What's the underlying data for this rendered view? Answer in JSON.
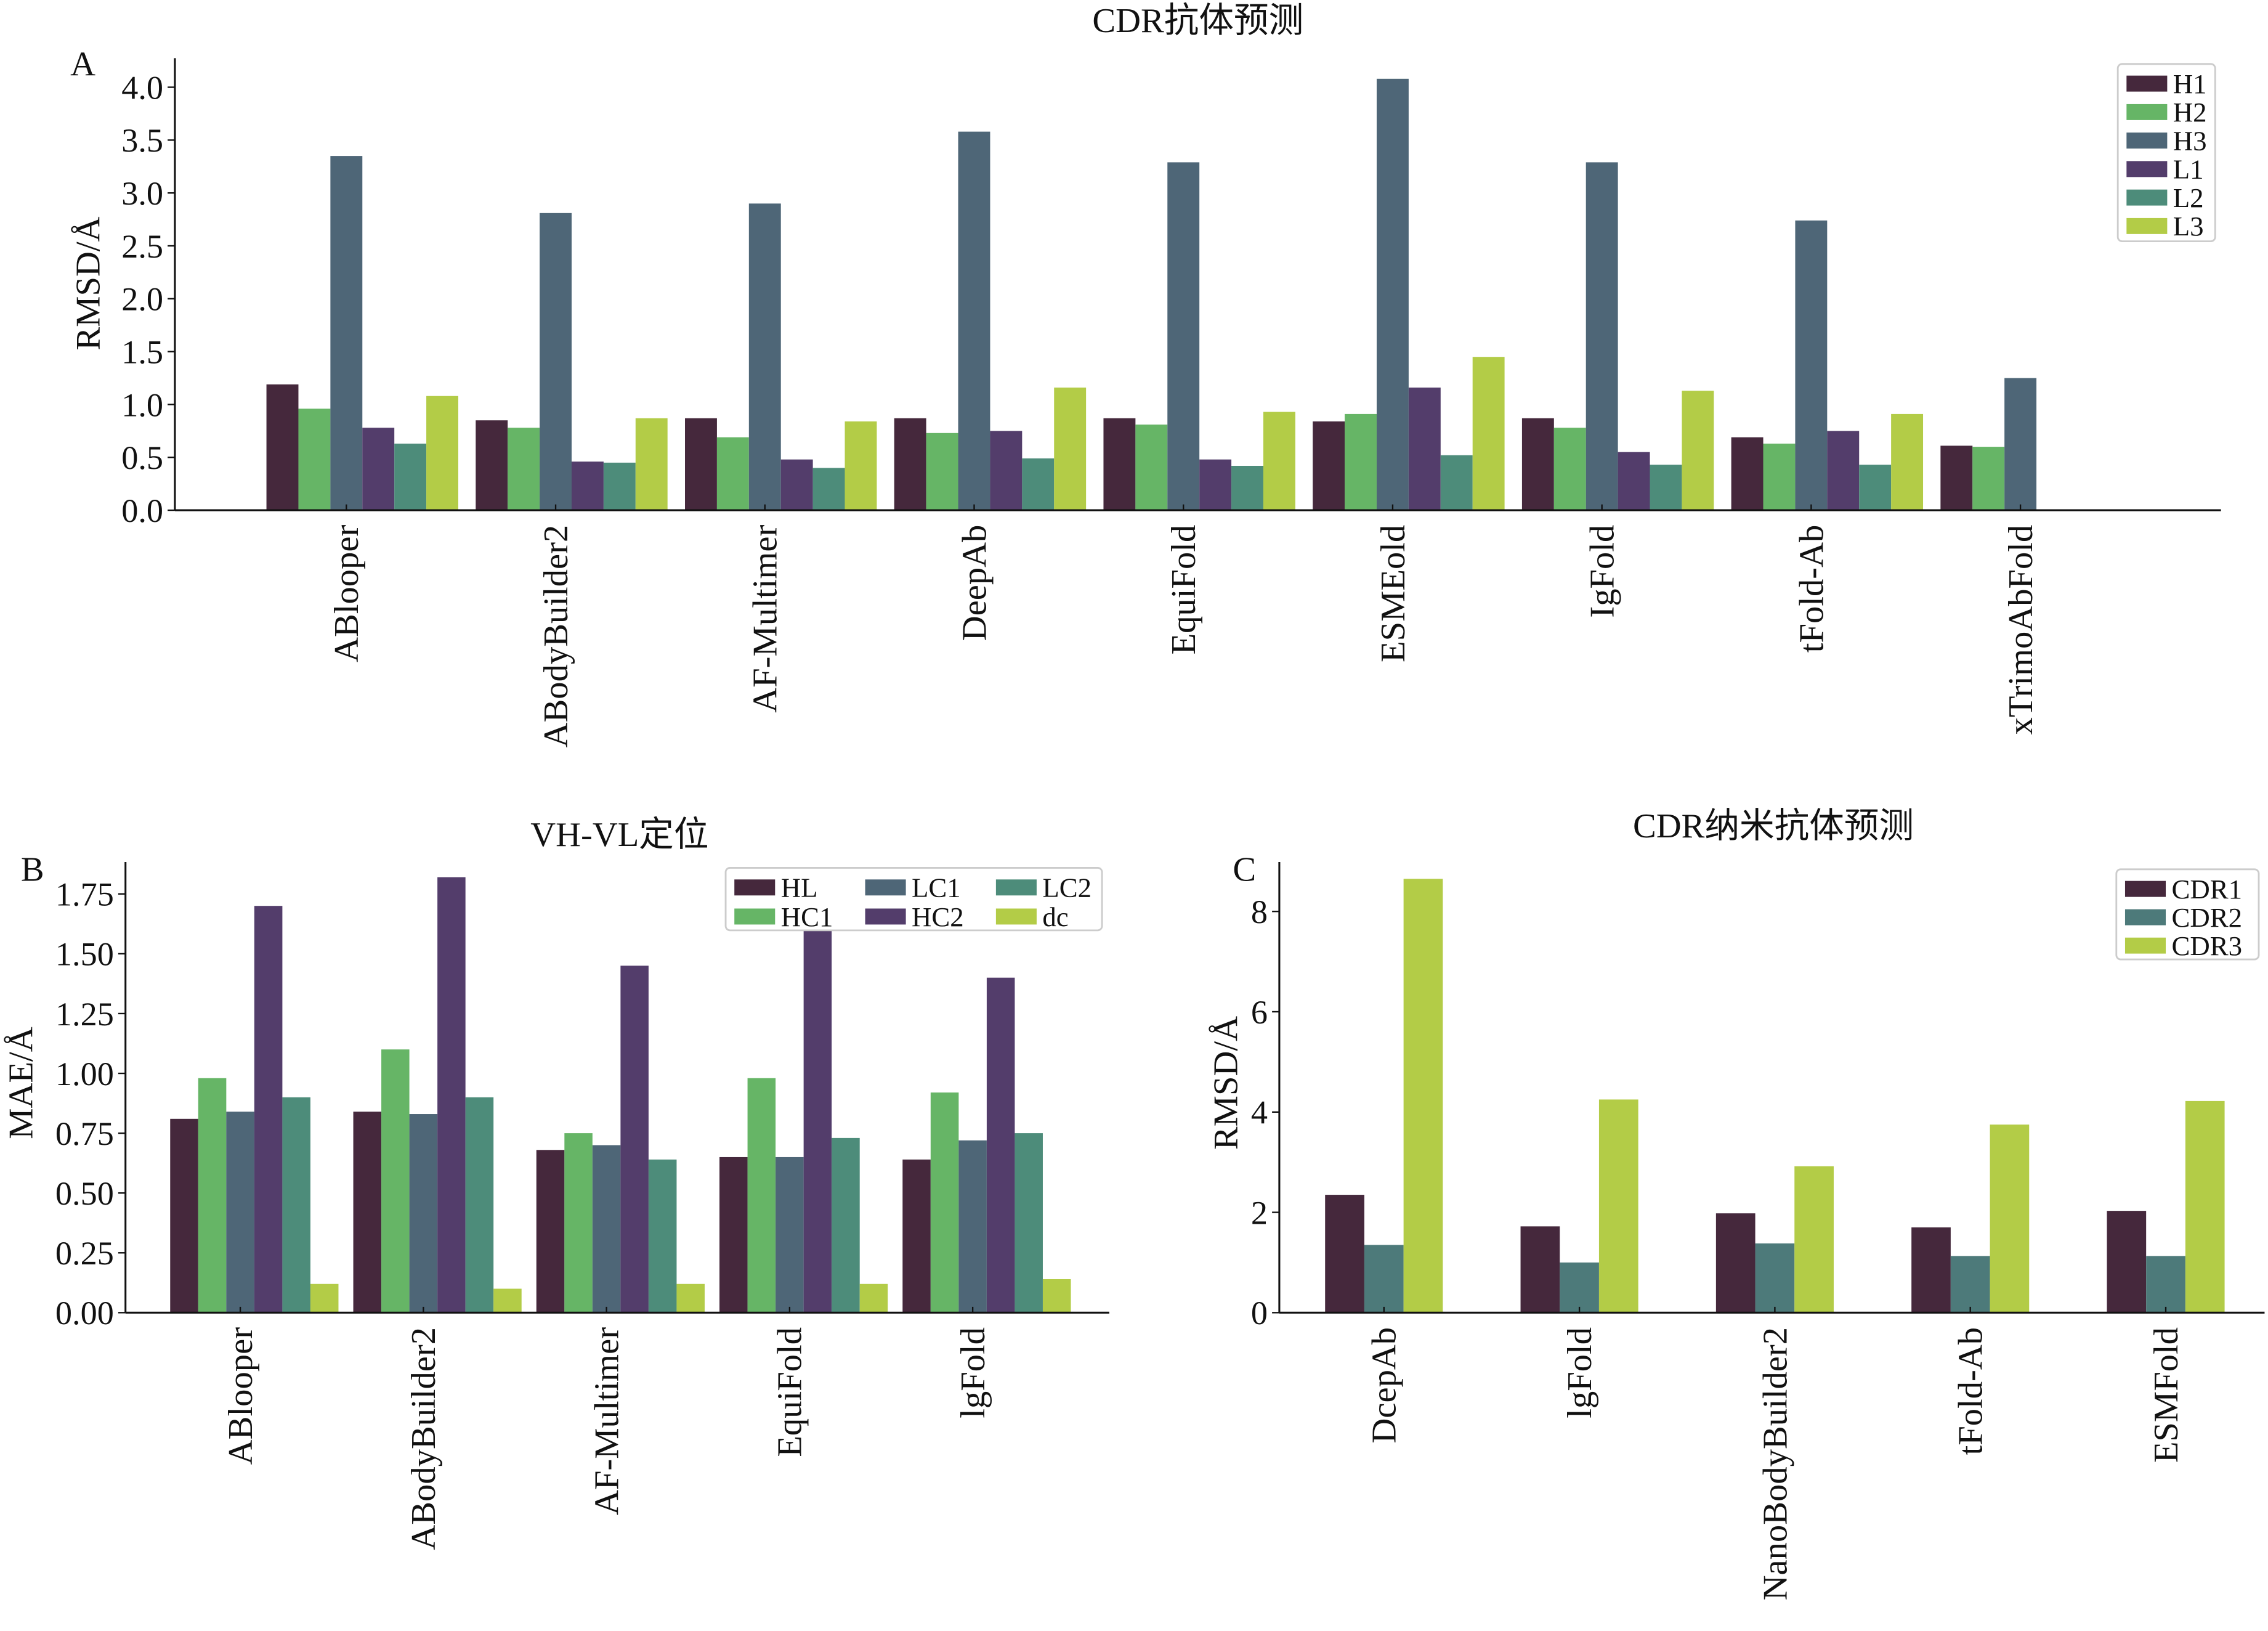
{
  "chart_data": [
    {
      "type": "bar",
      "panel": "A",
      "title": "CDR抗体预测",
      "xlabel": "",
      "ylabel": "RMSD/Å",
      "ylim": [
        0,
        4.3
      ],
      "yticks": [
        "0.0",
        "0.5",
        "1.0",
        "1.5",
        "2.0",
        "2.5",
        "3.0",
        "3.5",
        "4.0"
      ],
      "legend": "top-right",
      "categories": [
        "ABlooper",
        "ABodyBuilder2",
        "AF-Multimer",
        "DeepAb",
        "EquiFold",
        "ESMEold",
        "IgFold",
        "tFold-Ab",
        "xTrimoAbFold"
      ],
      "series": [
        {
          "name": "H1",
          "color": "#45283c",
          "values": [
            1.19,
            0.85,
            0.87,
            0.87,
            0.87,
            0.84,
            0.87,
            0.69,
            0.61
          ]
        },
        {
          "name": "H2",
          "color": "#66b566",
          "values": [
            0.96,
            0.78,
            0.69,
            0.73,
            0.81,
            0.91,
            0.78,
            0.63,
            0.6
          ]
        },
        {
          "name": "H3",
          "color": "#4e6677",
          "values": [
            3.35,
            2.81,
            2.9,
            3.58,
            3.29,
            4.08,
            3.29,
            2.74,
            1.25
          ]
        },
        {
          "name": "L1",
          "color": "#533d6b",
          "values": [
            0.78,
            0.46,
            0.48,
            0.75,
            0.48,
            1.16,
            0.55,
            0.75,
            null
          ]
        },
        {
          "name": "L2",
          "color": "#4d8c7a",
          "values": [
            0.63,
            0.45,
            0.4,
            0.49,
            0.42,
            0.52,
            0.43,
            0.43,
            null
          ]
        },
        {
          "name": "L3",
          "color": "#b3cc47",
          "values": [
            1.08,
            0.87,
            0.84,
            1.16,
            0.93,
            1.45,
            1.13,
            0.91,
            null
          ]
        }
      ]
    },
    {
      "type": "bar",
      "panel": "B",
      "title": "VH-VL定位",
      "xlabel": "",
      "ylabel": "MAE/Å",
      "ylim": [
        0,
        1.9
      ],
      "yticks": [
        "0.00",
        "0.25",
        "0.50",
        "0.75",
        "1.00",
        "1.25",
        "1.50",
        "1.75"
      ],
      "legend": "top-right",
      "categories": [
        "ABlooper",
        "ABodyBuilder2",
        "AF-Multimer",
        "EquiFold",
        "lgFold"
      ],
      "series": [
        {
          "name": "HL",
          "color": "#45283c",
          "values": [
            0.81,
            0.84,
            0.68,
            0.65,
            0.64
          ]
        },
        {
          "name": "HC1",
          "color": "#66b566",
          "values": [
            0.98,
            1.1,
            0.75,
            0.98,
            0.92
          ]
        },
        {
          "name": "LC1",
          "color": "#4e6677",
          "values": [
            0.84,
            0.83,
            0.7,
            0.65,
            0.72
          ]
        },
        {
          "name": "HC2",
          "color": "#533d6b",
          "values": [
            1.7,
            1.82,
            1.45,
            1.62,
            1.4
          ]
        },
        {
          "name": "LC2",
          "color": "#4d8c7a",
          "values": [
            0.9,
            0.9,
            0.64,
            0.73,
            0.75
          ]
        },
        {
          "name": "dc",
          "color": "#b3cc47",
          "values": [
            0.12,
            0.1,
            0.12,
            0.12,
            0.14
          ]
        }
      ]
    },
    {
      "type": "bar",
      "panel": "C",
      "title": "CDR纳米抗体预测",
      "xlabel": "",
      "ylabel": "RMSD/Å",
      "ylim": [
        0,
        9
      ],
      "yticks": [
        "0",
        "2",
        "4",
        "6",
        "8"
      ],
      "legend": "top-right",
      "categories": [
        "DcepAb",
        "lgFold",
        "NanoBodyBuilder2",
        "tFold-Ab",
        "ESMFold"
      ],
      "series": [
        {
          "name": "CDR1",
          "color": "#45283c",
          "values": [
            2.35,
            1.72,
            1.98,
            1.7,
            2.03
          ]
        },
        {
          "name": "CDR2",
          "color": "#4d7a7a",
          "values": [
            1.35,
            1.0,
            1.38,
            1.13,
            1.13
          ]
        },
        {
          "name": "CDR3",
          "color": "#b3cc47",
          "values": [
            8.65,
            4.25,
            2.92,
            3.75,
            4.22
          ]
        }
      ]
    }
  ]
}
